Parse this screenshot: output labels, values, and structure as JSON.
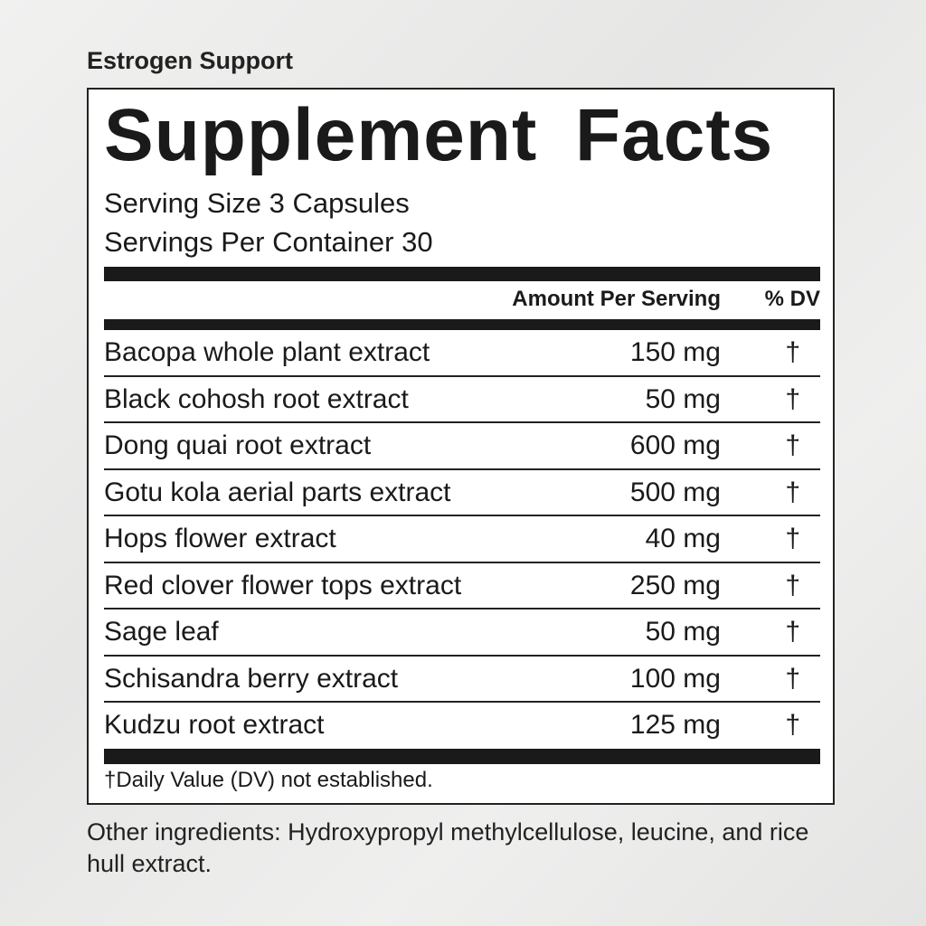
{
  "product_subtitle": "Estrogen Support",
  "panel": {
    "title": "Supplement Facts",
    "serving_size": "Serving Size 3 Capsules",
    "servings_per_container": "Servings Per Container 30",
    "header_amount": "Amount Per Serving",
    "header_dv": "% DV",
    "rows": [
      {
        "name": "Bacopa whole plant extract",
        "amount": "150 mg",
        "dv": "†"
      },
      {
        "name": "Black cohosh root extract",
        "amount": "50 mg",
        "dv": "†"
      },
      {
        "name": "Dong quai root extract",
        "amount": "600 mg",
        "dv": "†"
      },
      {
        "name": "Gotu kola aerial parts extract",
        "amount": "500 mg",
        "dv": "†"
      },
      {
        "name": "Hops flower extract",
        "amount": "40 mg",
        "dv": "†"
      },
      {
        "name": "Red clover flower tops extract",
        "amount": "250 mg",
        "dv": "†"
      },
      {
        "name": "Sage leaf",
        "amount": "50 mg",
        "dv": "†"
      },
      {
        "name": "Schisandra berry extract",
        "amount": "100 mg",
        "dv": "†"
      },
      {
        "name": "Kudzu root extract",
        "amount": "125 mg",
        "dv": "†"
      }
    ],
    "footnote": "†Daily Value (DV) not established."
  },
  "other_ingredients": "Other ingredients: Hydroxypropyl methylcellulose, leucine, and rice hull extract."
}
